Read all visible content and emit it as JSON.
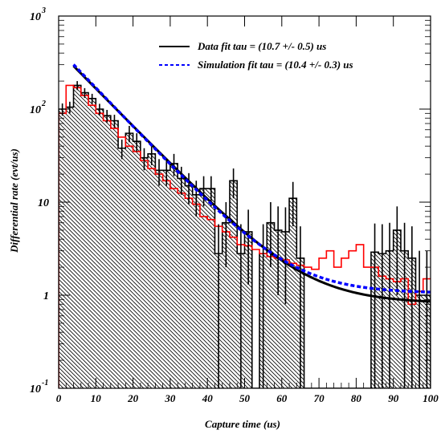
{
  "chart_data": {
    "type": "histogram",
    "title": "",
    "xlabel": "Capture time (us)",
    "ylabel": "Differential rate (evt/us)",
    "xlim": [
      0,
      100
    ],
    "ylim": [
      0.1,
      1000
    ],
    "log_y": true,
    "grid": false,
    "legend_position": "top-right",
    "x_ticks": [
      {
        "value": 0,
        "label": "0"
      },
      {
        "value": 10,
        "label": "10"
      },
      {
        "value": 20,
        "label": "20"
      },
      {
        "value": 30,
        "label": "30"
      },
      {
        "value": 40,
        "label": "40"
      },
      {
        "value": 50,
        "label": "50"
      },
      {
        "value": 60,
        "label": "60"
      },
      {
        "value": 70,
        "label": "70"
      },
      {
        "value": 80,
        "label": "80"
      },
      {
        "value": 90,
        "label": "90"
      },
      {
        "value": 100,
        "label": "100"
      }
    ],
    "y_ticks": [
      {
        "value": 0.1,
        "base": "10",
        "exp": "-1"
      },
      {
        "value": 1,
        "base": "1",
        "exp": ""
      },
      {
        "value": 10,
        "base": "10",
        "exp": ""
      },
      {
        "value": 100,
        "base": "10",
        "exp": "2"
      },
      {
        "value": 1000,
        "base": "10",
        "exp": "3"
      }
    ],
    "bin_width": 2,
    "data_hist": {
      "color": "#000000",
      "bin_edges_start": 0,
      "values": [
        100,
        105,
        180,
        150,
        130,
        100,
        85,
        75,
        38,
        55,
        45,
        30,
        33,
        22,
        22,
        26,
        18,
        15,
        12,
        14,
        14,
        2.8,
        6,
        17,
        2.8,
        4.8,
        0.1,
        2.8,
        6,
        5,
        4.8,
        11,
        2.5,
        0.1,
        0.1,
        0.1,
        0.1,
        0.1,
        0.1,
        0.1,
        0.1,
        0.1,
        2.9,
        2.8,
        3,
        5,
        3,
        2.5,
        1,
        1
      ],
      "errors": [
        15,
        15,
        20,
        18,
        16,
        14,
        13,
        12,
        9,
        11,
        10,
        8,
        8,
        7,
        7,
        7,
        6,
        5.5,
        5,
        5,
        5,
        3,
        4,
        6,
        3,
        3.5,
        0,
        3,
        4,
        4,
        4,
        5.5,
        3,
        0,
        0,
        0,
        0,
        0,
        0,
        0,
        0,
        0,
        3,
        3,
        3,
        4,
        3,
        3,
        2,
        2
      ]
    },
    "simulation_hist": {
      "color": "#ff0000",
      "values": [
        90,
        180,
        170,
        140,
        110,
        90,
        75,
        62,
        50,
        40,
        35,
        28,
        23,
        20,
        17,
        14,
        12.5,
        11,
        9.5,
        7,
        6.5,
        5.5,
        4.8,
        4.2,
        3.5,
        3.4,
        3.1,
        2.8,
        2.6,
        2.5,
        2.4,
        2.2,
        2.1,
        2,
        1.9,
        2.5,
        3,
        2,
        2.5,
        3,
        3.5,
        2,
        2,
        1.6,
        1.5,
        1.4,
        1.5,
        0.8,
        1.1,
        1.5
      ]
    },
    "fits": [
      {
        "name": "Data fit tau = (10.7 +/- 0.5) us",
        "color": "#000000",
        "dash": "solid",
        "tau": 10.7,
        "amplitude": 290,
        "constant": 0.82,
        "x_start": 4
      },
      {
        "name": "Simulation fit tau = (10.4 +/- 0.3) us",
        "color": "#0000ff",
        "dash": "dashed",
        "tau": 10.4,
        "amplitude": 300,
        "constant": 1.05,
        "x_start": 4
      }
    ]
  }
}
